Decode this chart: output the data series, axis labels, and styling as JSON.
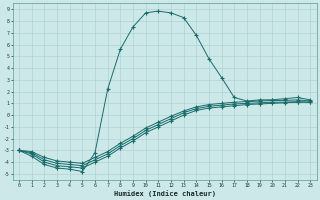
{
  "xlabel": "Humidex (Indice chaleur)",
  "bg_color": "#cce8e8",
  "grid_color": "#aacece",
  "line_color": "#1a6b6b",
  "xlim": [
    -0.5,
    23.5
  ],
  "ylim": [
    -5.5,
    9.5
  ],
  "xticks": [
    0,
    1,
    2,
    3,
    4,
    5,
    6,
    7,
    8,
    9,
    10,
    11,
    12,
    13,
    14,
    15,
    16,
    17,
    18,
    19,
    20,
    21,
    22,
    23
  ],
  "yticks": [
    -5,
    -4,
    -3,
    -2,
    -1,
    0,
    1,
    2,
    3,
    4,
    5,
    6,
    7,
    8,
    9
  ],
  "ytick_labels": [
    "-5",
    "-4",
    "-3",
    "-2",
    "-1",
    "0",
    "1",
    "2",
    "3",
    "4",
    "5",
    "6",
    "7",
    "8",
    "9"
  ],
  "lines": [
    {
      "x": [
        0,
        1,
        2,
        3,
        4,
        5,
        6,
        7,
        8,
        9,
        10,
        11,
        12,
        13,
        14,
        15,
        16,
        17,
        18,
        19,
        20,
        21,
        22,
        23
      ],
      "y": [
        -3.0,
        -3.5,
        -4.2,
        -4.5,
        -4.6,
        -4.8,
        -3.2,
        2.2,
        5.6,
        7.5,
        8.7,
        8.85,
        8.7,
        8.3,
        6.8,
        4.8,
        3.2,
        1.5,
        1.2,
        1.3,
        1.3,
        1.4,
        1.5,
        1.3
      ],
      "marker": "+"
    },
    {
      "x": [
        0,
        1,
        2,
        3,
        4,
        5,
        6,
        7,
        8,
        9,
        10,
        11,
        12,
        13,
        14,
        15,
        16,
        17,
        18,
        19,
        20,
        21,
        22,
        23
      ],
      "y": [
        -3.0,
        -3.3,
        -4.0,
        -4.3,
        -4.4,
        -4.5,
        -4.0,
        -3.5,
        -2.8,
        -2.2,
        -1.5,
        -1.0,
        -0.5,
        0.0,
        0.4,
        0.6,
        0.7,
        0.8,
        0.9,
        0.95,
        1.0,
        1.05,
        1.1,
        1.1
      ],
      "marker": "+"
    },
    {
      "x": [
        0,
        1,
        2,
        3,
        4,
        5,
        6,
        7,
        8,
        9,
        10,
        11,
        12,
        13,
        14,
        15,
        16,
        17,
        18,
        19,
        20,
        21,
        22,
        23
      ],
      "y": [
        -3.0,
        -3.2,
        -3.8,
        -4.1,
        -4.2,
        -4.3,
        -3.8,
        -3.3,
        -2.6,
        -2.0,
        -1.3,
        -0.8,
        -0.3,
        0.2,
        0.55,
        0.75,
        0.85,
        0.95,
        1.0,
        1.05,
        1.1,
        1.1,
        1.15,
        1.1
      ],
      "marker": "+"
    },
    {
      "x": [
        0,
        1,
        2,
        3,
        4,
        5,
        6,
        7,
        8,
        9,
        10,
        11,
        12,
        13,
        14,
        15,
        16,
        17,
        18,
        19,
        20,
        21,
        22,
        23
      ],
      "y": [
        -3.0,
        -3.1,
        -3.6,
        -3.9,
        -4.0,
        -4.1,
        -3.6,
        -3.1,
        -2.4,
        -1.8,
        -1.1,
        -0.6,
        -0.1,
        0.35,
        0.7,
        0.9,
        1.0,
        1.1,
        1.15,
        1.2,
        1.25,
        1.25,
        1.3,
        1.2
      ],
      "marker": "+"
    }
  ]
}
